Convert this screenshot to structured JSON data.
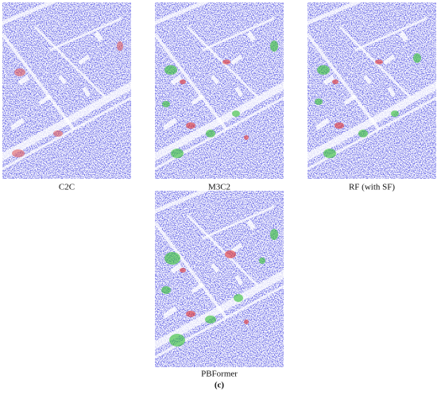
{
  "panels": [
    {
      "label": "C2C"
    },
    {
      "label": "M3C2"
    },
    {
      "label": "RF (with SF)"
    },
    {
      "label": "PBFormer"
    }
  ],
  "figure_label": "(c)"
}
